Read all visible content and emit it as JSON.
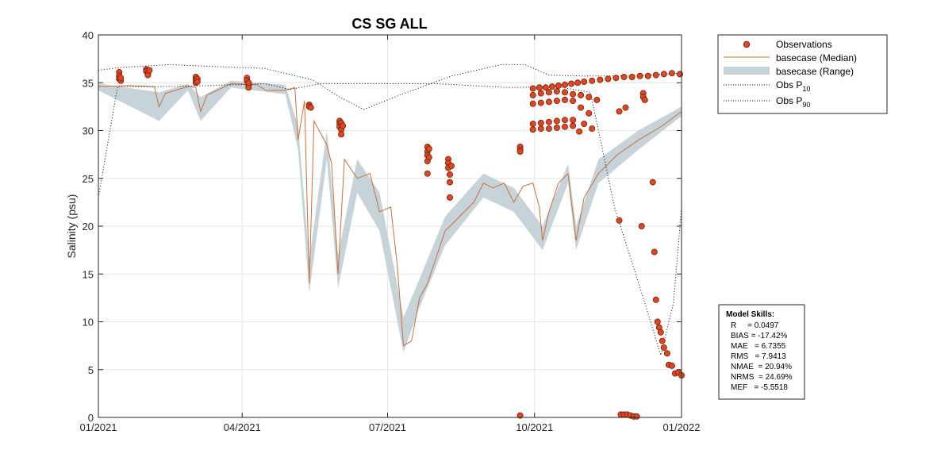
{
  "chart_data": {
    "type": "line",
    "title": "CS SG ALL",
    "xlabel": "",
    "ylabel": "Salinity (psu)",
    "xlim": [
      "2021-01-01",
      "2022-01-01"
    ],
    "ylim": [
      0,
      40
    ],
    "yticks": [
      0,
      5,
      10,
      15,
      20,
      25,
      30,
      35,
      40
    ],
    "xticks": [
      {
        "date": "2021-01-01",
        "label": "01/2021"
      },
      {
        "date": "2021-04-01",
        "label": "04/2021"
      },
      {
        "date": "2021-07-01",
        "label": "07/2021"
      },
      {
        "date": "2021-10-01",
        "label": "10/2021"
      },
      {
        "date": "2022-01-01",
        "label": "01/2022"
      }
    ],
    "grid": true,
    "legend_position": "outside-top-right",
    "legend": {
      "observations": "Observations",
      "median": "basecase (Median)",
      "range": "basecase (Range)",
      "p10_prefix": "Obs P",
      "p10_sub": "10",
      "p90_prefix": "Obs P",
      "p90_sub": "90"
    },
    "colors": {
      "observations_fill": "#e8431f",
      "observations_edge": "#5a2a10",
      "median": "#c8703a",
      "range": "#c6d3d9",
      "percentile": "#000000",
      "grid": "#e6e6e6"
    },
    "series": [
      {
        "name": "basecase (Median)",
        "type": "line",
        "points": [
          [
            "2021-01-01",
            34.6
          ],
          [
            "2021-01-20",
            34.7
          ],
          [
            "2021-02-05",
            34.6
          ],
          [
            "2021-02-08",
            32.5
          ],
          [
            "2021-02-12",
            33.9
          ],
          [
            "2021-02-26",
            34.6
          ],
          [
            "2021-03-03",
            34.5
          ],
          [
            "2021-03-06",
            32.0
          ],
          [
            "2021-03-10",
            33.7
          ],
          [
            "2021-03-25",
            34.9
          ],
          [
            "2021-04-10",
            34.8
          ],
          [
            "2021-04-16",
            34.2
          ],
          [
            "2021-04-28",
            34.2
          ],
          [
            "2021-05-04",
            34.5
          ],
          [
            "2021-05-06",
            29.0
          ],
          [
            "2021-05-10",
            33.1
          ],
          [
            "2021-05-13",
            14.0
          ],
          [
            "2021-05-16",
            31.0
          ],
          [
            "2021-05-24",
            28.5
          ],
          [
            "2021-05-27",
            26.5
          ],
          [
            "2021-05-31",
            15.0
          ],
          [
            "2021-06-04",
            27.0
          ],
          [
            "2021-06-12",
            25.0
          ],
          [
            "2021-06-20",
            25.5
          ],
          [
            "2021-06-26",
            21.5
          ],
          [
            "2021-07-03",
            22.0
          ],
          [
            "2021-07-07",
            16.0
          ],
          [
            "2021-07-11",
            7.5
          ],
          [
            "2021-07-16",
            8.0
          ],
          [
            "2021-07-21",
            12.5
          ],
          [
            "2021-07-26",
            14.0
          ],
          [
            "2021-07-31",
            16.5
          ],
          [
            "2021-08-06",
            19.5
          ],
          [
            "2021-08-12",
            20.5
          ],
          [
            "2021-08-18",
            21.5
          ],
          [
            "2021-08-24",
            22.5
          ],
          [
            "2021-08-30",
            24.5
          ],
          [
            "2021-09-05",
            24.0
          ],
          [
            "2021-09-12",
            24.5
          ],
          [
            "2021-09-18",
            22.5
          ],
          [
            "2021-09-24",
            24.2
          ],
          [
            "2021-09-30",
            24.5
          ],
          [
            "2021-10-04",
            22.0
          ],
          [
            "2021-10-06",
            18.5
          ],
          [
            "2021-10-10",
            21.5
          ],
          [
            "2021-10-16",
            24.5
          ],
          [
            "2021-10-22",
            25.5
          ],
          [
            "2021-10-27",
            18.5
          ],
          [
            "2021-11-01",
            23.0
          ],
          [
            "2021-11-10",
            25.5
          ],
          [
            "2021-11-22",
            27.5
          ],
          [
            "2021-12-05",
            29.0
          ],
          [
            "2021-12-20",
            30.5
          ],
          [
            "2022-01-01",
            32.0
          ]
        ]
      },
      {
        "name": "basecase (Range)",
        "type": "area",
        "lower": [
          [
            "2021-01-01",
            34.2
          ],
          [
            "2021-02-08",
            31.0
          ],
          [
            "2021-02-26",
            34.2
          ],
          [
            "2021-03-06",
            31.0
          ],
          [
            "2021-03-25",
            34.5
          ],
          [
            "2021-04-28",
            33.8
          ],
          [
            "2021-05-06",
            28.0
          ],
          [
            "2021-05-13",
            13.0
          ],
          [
            "2021-05-24",
            27.0
          ],
          [
            "2021-05-31",
            13.5
          ],
          [
            "2021-06-12",
            23.5
          ],
          [
            "2021-06-26",
            19.5
          ],
          [
            "2021-07-11",
            6.8
          ],
          [
            "2021-07-21",
            11.5
          ],
          [
            "2021-08-06",
            18.0
          ],
          [
            "2021-08-30",
            23.0
          ],
          [
            "2021-09-18",
            21.5
          ],
          [
            "2021-10-06",
            17.5
          ],
          [
            "2021-10-22",
            24.5
          ],
          [
            "2021-10-27",
            17.5
          ],
          [
            "2021-11-10",
            24.5
          ],
          [
            "2021-12-05",
            28.0
          ],
          [
            "2022-01-01",
            31.5
          ]
        ],
        "upper": [
          [
            "2021-01-01",
            34.9
          ],
          [
            "2021-02-08",
            34.0
          ],
          [
            "2021-02-26",
            34.9
          ],
          [
            "2021-03-06",
            33.5
          ],
          [
            "2021-03-25",
            35.2
          ],
          [
            "2021-04-28",
            34.8
          ],
          [
            "2021-05-06",
            30.5
          ],
          [
            "2021-05-13",
            16.5
          ],
          [
            "2021-05-24",
            30.0
          ],
          [
            "2021-05-31",
            17.0
          ],
          [
            "2021-06-12",
            27.0
          ],
          [
            "2021-06-26",
            23.5
          ],
          [
            "2021-07-11",
            10.5
          ],
          [
            "2021-07-21",
            14.5
          ],
          [
            "2021-08-06",
            21.0
          ],
          [
            "2021-08-30",
            25.5
          ],
          [
            "2021-09-18",
            24.0
          ],
          [
            "2021-10-06",
            20.0
          ],
          [
            "2021-10-22",
            26.5
          ],
          [
            "2021-10-27",
            20.0
          ],
          [
            "2021-11-10",
            27.0
          ],
          [
            "2021-12-05",
            30.0
          ],
          [
            "2022-01-01",
            32.5
          ]
        ]
      },
      {
        "name": "Obs P10",
        "type": "line",
        "style": "dotted",
        "points": [
          [
            "2021-01-01",
            23.0
          ],
          [
            "2021-01-13",
            34.6
          ],
          [
            "2021-02-10",
            34.6
          ],
          [
            "2021-03-10",
            34.7
          ],
          [
            "2021-04-15",
            34.9
          ],
          [
            "2021-05-01",
            34.3
          ],
          [
            "2021-05-20",
            34.9
          ],
          [
            "2021-08-01",
            34.9
          ],
          [
            "2021-09-15",
            34.5
          ],
          [
            "2021-10-15",
            34.6
          ],
          [
            "2021-11-05",
            34.0
          ],
          [
            "2021-11-20",
            22.0
          ],
          [
            "2021-12-09",
            12.0
          ],
          [
            "2021-12-19",
            6.5
          ],
          [
            "2021-12-27",
            12.0
          ],
          [
            "2022-01-01",
            22.0
          ]
        ]
      },
      {
        "name": "Obs P90",
        "type": "line",
        "style": "dotted",
        "points": [
          [
            "2021-01-01",
            36.3
          ],
          [
            "2021-01-15",
            36.6
          ],
          [
            "2021-02-15",
            36.9
          ],
          [
            "2021-03-15",
            36.7
          ],
          [
            "2021-04-15",
            36.5
          ],
          [
            "2021-05-15",
            35.3
          ],
          [
            "2021-06-01",
            33.5
          ],
          [
            "2021-06-16",
            32.2
          ],
          [
            "2021-07-10",
            33.8
          ],
          [
            "2021-08-10",
            35.7
          ],
          [
            "2021-09-10",
            36.9
          ],
          [
            "2021-09-25",
            36.9
          ],
          [
            "2021-10-10",
            35.8
          ],
          [
            "2021-11-01",
            35.7
          ],
          [
            "2021-12-01",
            35.7
          ],
          [
            "2022-01-01",
            36.0
          ]
        ]
      },
      {
        "name": "Observations",
        "type": "scatter",
        "points": [
          [
            "2021-01-14",
            36.1
          ],
          [
            "2021-01-14",
            35.7
          ],
          [
            "2021-01-14",
            35.4
          ],
          [
            "2021-01-15",
            35.2
          ],
          [
            "2021-01-15",
            35.5
          ],
          [
            "2021-01-31",
            36.4
          ],
          [
            "2021-01-31",
            36.2
          ],
          [
            "2021-02-01",
            36.0
          ],
          [
            "2021-02-01",
            35.8
          ],
          [
            "2021-02-02",
            36.3
          ],
          [
            "2021-03-03",
            35.6
          ],
          [
            "2021-03-03",
            35.3
          ],
          [
            "2021-03-03",
            35.0
          ],
          [
            "2021-03-04",
            35.4
          ],
          [
            "2021-03-04",
            35.1
          ],
          [
            "2021-04-04",
            35.5
          ],
          [
            "2021-04-04",
            35.2
          ],
          [
            "2021-04-05",
            34.8
          ],
          [
            "2021-04-05",
            34.5
          ],
          [
            "2021-04-05",
            35.0
          ],
          [
            "2021-05-13",
            32.7
          ],
          [
            "2021-05-13",
            32.5
          ],
          [
            "2021-05-14",
            32.4
          ],
          [
            "2021-06-01",
            31.0
          ],
          [
            "2021-06-01",
            30.7
          ],
          [
            "2021-06-01",
            30.4
          ],
          [
            "2021-06-02",
            30.1
          ],
          [
            "2021-06-02",
            29.6
          ],
          [
            "2021-06-02",
            30.8
          ],
          [
            "2021-06-03",
            30.5
          ],
          [
            "2021-07-26",
            28.3
          ],
          [
            "2021-07-26",
            27.8
          ],
          [
            "2021-07-26",
            27.4
          ],
          [
            "2021-07-26",
            26.8
          ],
          [
            "2021-07-26",
            25.5
          ],
          [
            "2021-07-27",
            28.1
          ],
          [
            "2021-07-27",
            27.2
          ],
          [
            "2021-08-08",
            27.0
          ],
          [
            "2021-08-08",
            26.6
          ],
          [
            "2021-08-08",
            26.1
          ],
          [
            "2021-08-09",
            25.4
          ],
          [
            "2021-08-09",
            24.6
          ],
          [
            "2021-08-09",
            23.0
          ],
          [
            "2021-08-10",
            26.3
          ],
          [
            "2021-09-22",
            28.3
          ],
          [
            "2021-09-22",
            28.0
          ],
          [
            "2021-09-22",
            27.8
          ],
          [
            "2021-09-22",
            0.2
          ],
          [
            "2021-09-30",
            34.4
          ],
          [
            "2021-10-04",
            34.5
          ],
          [
            "2021-10-08",
            34.5
          ],
          [
            "2021-10-12",
            34.6
          ],
          [
            "2021-10-16",
            34.7
          ],
          [
            "2021-10-20",
            34.8
          ],
          [
            "2021-10-24",
            34.9
          ],
          [
            "2021-10-28",
            35.0
          ],
          [
            "2021-11-01",
            35.1
          ],
          [
            "2021-11-06",
            35.2
          ],
          [
            "2021-11-11",
            35.3
          ],
          [
            "2021-11-16",
            35.4
          ],
          [
            "2021-11-21",
            35.5
          ],
          [
            "2021-11-26",
            35.6
          ],
          [
            "2021-12-01",
            35.6
          ],
          [
            "2021-12-06",
            35.7
          ],
          [
            "2021-12-11",
            35.7
          ],
          [
            "2021-12-16",
            35.8
          ],
          [
            "2021-12-21",
            35.9
          ],
          [
            "2021-12-26",
            36.0
          ],
          [
            "2021-12-31",
            35.9
          ],
          [
            "2021-09-30",
            33.7
          ],
          [
            "2021-10-05",
            33.9
          ],
          [
            "2021-10-10",
            34.0
          ],
          [
            "2021-10-15",
            34.1
          ],
          [
            "2021-10-20",
            34.0
          ],
          [
            "2021-10-25",
            33.8
          ],
          [
            "2021-10-30",
            33.7
          ],
          [
            "2021-11-04",
            33.5
          ],
          [
            "2021-11-09",
            33.2
          ],
          [
            "2021-09-30",
            32.8
          ],
          [
            "2021-10-05",
            32.9
          ],
          [
            "2021-10-10",
            33.0
          ],
          [
            "2021-10-15",
            33.1
          ],
          [
            "2021-10-20",
            33.2
          ],
          [
            "2021-10-25",
            33.1
          ],
          [
            "2021-10-30",
            32.4
          ],
          [
            "2021-11-04",
            31.8
          ],
          [
            "2021-09-30",
            30.7
          ],
          [
            "2021-10-05",
            30.8
          ],
          [
            "2021-10-10",
            30.9
          ],
          [
            "2021-10-15",
            31.0
          ],
          [
            "2021-10-20",
            31.1
          ],
          [
            "2021-10-25",
            31.1
          ],
          [
            "2021-11-01",
            30.7
          ],
          [
            "2021-11-06",
            30.2
          ],
          [
            "2021-09-30",
            30.1
          ],
          [
            "2021-10-05",
            30.2
          ],
          [
            "2021-10-10",
            30.2
          ],
          [
            "2021-10-15",
            30.3
          ],
          [
            "2021-10-20",
            30.4
          ],
          [
            "2021-10-25",
            30.5
          ],
          [
            "2021-10-29",
            29.9
          ],
          [
            "2021-11-23",
            32.0
          ],
          [
            "2021-11-27",
            32.4
          ],
          [
            "2021-12-08",
            33.9
          ],
          [
            "2021-12-08",
            33.5
          ],
          [
            "2021-12-09",
            33.2
          ],
          [
            "2021-11-23",
            20.6
          ],
          [
            "2021-12-07",
            20.0
          ],
          [
            "2021-12-14",
            24.6
          ],
          [
            "2021-12-15",
            17.3
          ],
          [
            "2021-12-16",
            12.3
          ],
          [
            "2021-12-17",
            10.0
          ],
          [
            "2021-12-18",
            9.4
          ],
          [
            "2021-12-19",
            8.9
          ],
          [
            "2021-12-20",
            8.0
          ],
          [
            "2021-12-21",
            7.3
          ],
          [
            "2021-12-23",
            6.7
          ],
          [
            "2021-12-24",
            5.5
          ],
          [
            "2021-12-26",
            5.4
          ],
          [
            "2021-12-28",
            4.6
          ],
          [
            "2021-12-30",
            4.7
          ],
          [
            "2022-01-01",
            4.4
          ],
          [
            "2021-11-24",
            0.3
          ],
          [
            "2021-11-26",
            0.3
          ],
          [
            "2021-11-28",
            0.3
          ],
          [
            "2021-11-30",
            0.2
          ],
          [
            "2021-12-02",
            0.1
          ],
          [
            "2021-12-04",
            0.1
          ]
        ]
      }
    ],
    "skills": {
      "heading": "Model Skills:",
      "lines": [
        "R     = 0.0497",
        "BIAS = -17.42%",
        "MAE   = 6.7355",
        "RMS   = 7.9413",
        "NMAE  = 20.94%",
        "NRMS  = 24.69%",
        "MEF   = -5.5518"
      ]
    }
  }
}
